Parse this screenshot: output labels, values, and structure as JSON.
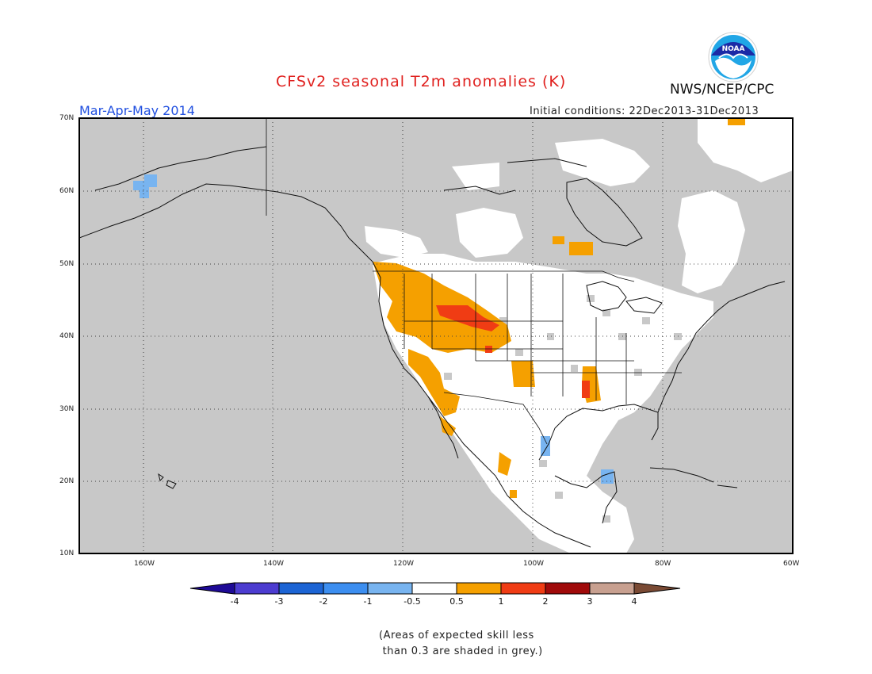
{
  "header": {
    "title": "CFSv2 seasonal T2m anomalies (K)",
    "period": "Mar-Apr-May 2014",
    "initial_conditions": "Initial conditions: 22Dec2013-31Dec2013",
    "agency": "NWS/NCEP/CPC",
    "logo_text": "NOAA"
  },
  "map": {
    "region": "North America",
    "lat_labels": [
      "70N",
      "60N",
      "50N",
      "40N",
      "30N",
      "20N",
      "10N"
    ],
    "lon_labels": [
      "160W",
      "140W",
      "120W",
      "100W",
      "80W",
      "60W"
    ],
    "colors": {
      "skill_mask_grey": "#c8c8c8",
      "neutral": "#ffffff",
      "warm_0_5_to_1": "#f5a000",
      "warm_1_to_2": "#f03c14",
      "cool_minus1_to_minus0_5": "#78b4f0"
    }
  },
  "colorbar": {
    "ticks": [
      "-4",
      "-3",
      "-2",
      "-1",
      "-0.5",
      "0.5",
      "1",
      "2",
      "3",
      "4"
    ],
    "colors": [
      "#1e0a96",
      "#4c3cd0",
      "#1c64d4",
      "#3c8ef0",
      "#78b4f0",
      "#ffffff",
      "#f5a000",
      "#f03c14",
      "#a00a0a",
      "#c8a090",
      "#7a4a34"
    ]
  },
  "note": "(Areas of expected skill less\n than 0.3 are shaded in grey.)"
}
